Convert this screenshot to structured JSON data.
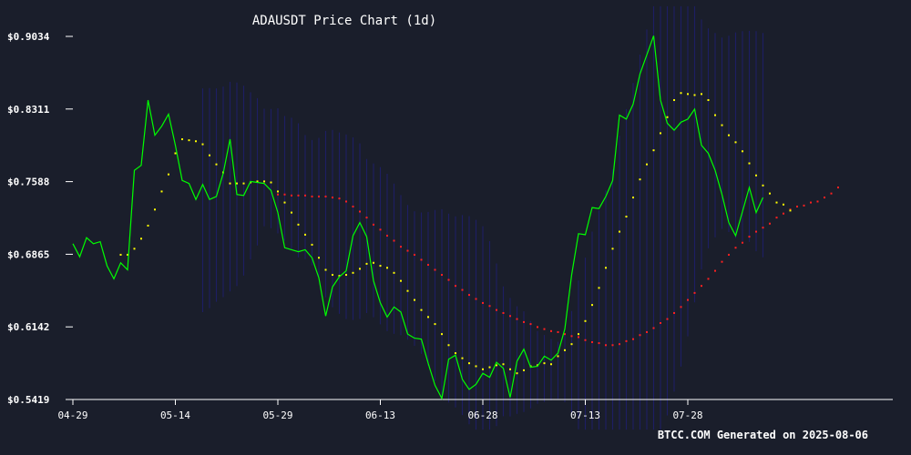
{
  "chart_data": {
    "type": "line",
    "title": "ADAUSDT Price Chart (1d)",
    "footer": "BTCC.COM Generated on 2025-08-06",
    "xlabel": "",
    "ylabel": "",
    "x_start": "2025-04-29",
    "x_ticks": [
      "04-29",
      "05-14",
      "05-29",
      "06-13",
      "06-28",
      "07-13",
      "07-28"
    ],
    "y_ticks": [
      "$0.9034",
      "$0.8311",
      "$0.7588",
      "$0.6865",
      "$0.6142",
      "$0.5419"
    ],
    "ylim": [
      0.5419,
      0.9034
    ],
    "grid": false,
    "colors": {
      "background": "#1a1e2b",
      "price": "#00ff00",
      "sma_fast": "#ffff00",
      "sma_slow": "#ff2020",
      "band": "#1e1e6e"
    },
    "series": [
      {
        "key": "price",
        "start_index": 0,
        "values": [
          0.697,
          0.684,
          0.703,
          0.697,
          0.699,
          0.675,
          0.662,
          0.678,
          0.671,
          0.77,
          0.775,
          0.84,
          0.805,
          0.814,
          0.826,
          0.795,
          0.76,
          0.757,
          0.741,
          0.756,
          0.741,
          0.744,
          0.767,
          0.801,
          0.746,
          0.745,
          0.759,
          0.758,
          0.757,
          0.75,
          0.728,
          0.693,
          0.691,
          0.689,
          0.691,
          0.683,
          0.663,
          0.625,
          0.654,
          0.664,
          0.67,
          0.705,
          0.718,
          0.704,
          0.66,
          0.638,
          0.624,
          0.634,
          0.629,
          0.607,
          0.603,
          0.602,
          0.578,
          0.556,
          0.543,
          0.582,
          0.586,
          0.562,
          0.552,
          0.557,
          0.568,
          0.564,
          0.579,
          0.573,
          0.544,
          0.58,
          0.592,
          0.574,
          0.575,
          0.585,
          0.581,
          0.588,
          0.612,
          0.666,
          0.707,
          0.706,
          0.733,
          0.732,
          0.744,
          0.76,
          0.825,
          0.821,
          0.836,
          0.866,
          0.885,
          0.904,
          0.84,
          0.817,
          0.81,
          0.818,
          0.821,
          0.831,
          0.795,
          0.787,
          0.77,
          0.746,
          0.718,
          0.705,
          0.729,
          0.753,
          0.728,
          0.743
        ]
      },
      {
        "key": "sma_fast",
        "start_index": 7,
        "values": [
          0.686,
          0.686,
          0.692,
          0.702,
          0.715,
          0.731,
          0.749,
          0.766,
          0.787,
          0.801,
          0.8,
          0.799,
          0.796,
          0.785,
          0.776,
          0.768,
          0.757,
          0.757,
          0.757,
          0.758,
          0.759,
          0.759,
          0.758,
          0.749,
          0.738,
          0.728,
          0.716,
          0.706,
          0.696,
          0.683,
          0.671,
          0.666,
          0.665,
          0.666,
          0.668,
          0.672,
          0.677,
          0.678,
          0.675,
          0.673,
          0.668,
          0.66,
          0.65,
          0.641,
          0.631,
          0.624,
          0.617,
          0.607,
          0.596,
          0.588,
          0.583,
          0.578,
          0.575,
          0.572,
          0.574,
          0.576,
          0.577,
          0.572,
          0.568,
          0.571,
          0.575,
          0.576,
          0.578,
          0.577,
          0.585,
          0.591,
          0.597,
          0.607,
          0.62,
          0.636,
          0.653,
          0.673,
          0.692,
          0.709,
          0.724,
          0.743,
          0.761,
          0.776,
          0.79,
          0.807,
          0.823,
          0.84,
          0.847,
          0.846,
          0.845,
          0.846,
          0.84,
          0.825,
          0.815,
          0.805,
          0.798,
          0.789,
          0.777,
          0.765,
          0.755,
          0.747,
          0.738,
          0.736,
          0.73
        ]
      },
      {
        "key": "sma_slow",
        "start_index": 30,
        "values": [
          0.746,
          0.746,
          0.745,
          0.745,
          0.745,
          0.744,
          0.744,
          0.744,
          0.743,
          0.742,
          0.739,
          0.734,
          0.729,
          0.723,
          0.716,
          0.711,
          0.705,
          0.7,
          0.694,
          0.69,
          0.686,
          0.681,
          0.676,
          0.671,
          0.666,
          0.661,
          0.655,
          0.651,
          0.646,
          0.642,
          0.638,
          0.635,
          0.631,
          0.628,
          0.625,
          0.622,
          0.619,
          0.617,
          0.614,
          0.612,
          0.61,
          0.609,
          0.607,
          0.605,
          0.604,
          0.601,
          0.599,
          0.598,
          0.596,
          0.596,
          0.597,
          0.6,
          0.602,
          0.606,
          0.609,
          0.613,
          0.618,
          0.622,
          0.628,
          0.634,
          0.641,
          0.648,
          0.655,
          0.662,
          0.67,
          0.679,
          0.686,
          0.693,
          0.698,
          0.704,
          0.709,
          0.713,
          0.717,
          0.723,
          0.727,
          0.731,
          0.734,
          0.735,
          0.738,
          0.739,
          0.743,
          0.747,
          0.753
        ]
      }
    ]
  }
}
